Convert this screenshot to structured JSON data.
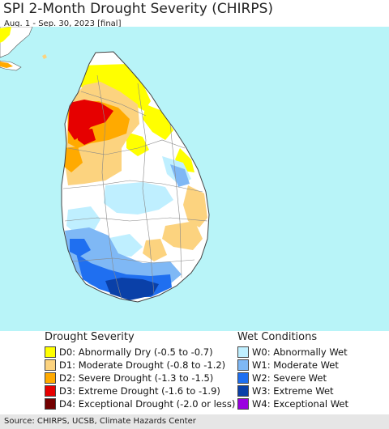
{
  "title": "SPI 2-Month Drought Severity (CHIRPS)",
  "subtitle": "Aug. 1 - Sep. 30, 2023 [final]",
  "colors": {
    "ocean": "#b8f4f8",
    "land_base": "#ffffff",
    "india": "#ffffff"
  },
  "legend": {
    "drought_heading": "Drought Severity",
    "drought_items": [
      {
        "code": "D0",
        "label": "D0: Abnormally Dry (-0.5 to -0.7)",
        "color": "#ffff00"
      },
      {
        "code": "D1",
        "label": "D1: Moderate Drought (-0.8 to -1.2)",
        "color": "#fcd37f"
      },
      {
        "code": "D2",
        "label": "D2: Severe Drought (-1.3 to -1.5)",
        "color": "#ffaa00"
      },
      {
        "code": "D3",
        "label": "D3: Extreme Drought (-1.6 to -1.9)",
        "color": "#e60000"
      },
      {
        "code": "D4",
        "label": "D4: Exceptional Drought (-2.0 or less)",
        "color": "#730000"
      }
    ],
    "wet_heading": "Wet Conditions",
    "wet_items": [
      {
        "code": "W0",
        "label": "W0: Abnormally Wet",
        "color": "#bfefff"
      },
      {
        "code": "W1",
        "label": "W1: Moderate Wet",
        "color": "#7fb8f5"
      },
      {
        "code": "W2",
        "label": "W2: Severe Wet",
        "color": "#1f6ff0"
      },
      {
        "code": "W3",
        "label": "W3: Extreme Wet",
        "color": "#0a40a8"
      },
      {
        "code": "W4",
        "label": "W4: Exceptional Wet",
        "color": "#9a00e0"
      }
    ]
  },
  "footer": "Source: CHIRPS, UCSB, Climate Hazards Center"
}
